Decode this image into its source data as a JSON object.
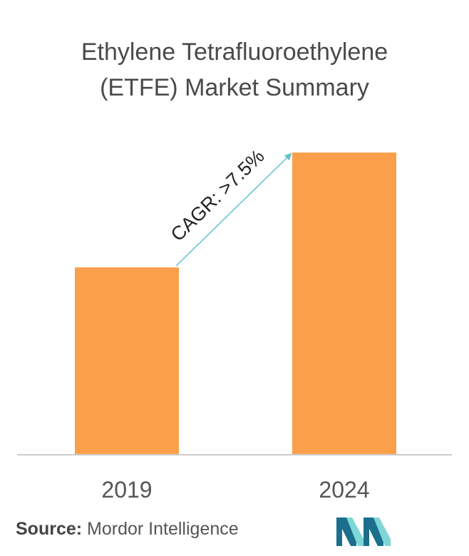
{
  "title_line1": "Ethylene Tetrafluoroethylene",
  "title_line2": "(ETFE) Market Summary",
  "source_label": "Source:",
  "source_name": "Mordor Intelligence",
  "annotation": "CAGR: >7.5%",
  "colors": {
    "bar": "#FBA04A",
    "arrow": "#5EC4CC",
    "axis": "#CCCCCC",
    "text": "#555555",
    "logo_dark": "#1B6F8C",
    "logo_light": "#7FD6D6"
  },
  "chart_data": {
    "type": "bar",
    "title": "Ethylene Tetrafluoroethylene (ETFE) Market Summary",
    "categories": [
      "2019",
      "2024"
    ],
    "values": [
      0.62,
      1.0
    ],
    "value_note": "relative bar heights; no value axis shown",
    "ylim": [
      0,
      1
    ],
    "grid": false,
    "annotation": "CAGR: >7.5%"
  }
}
